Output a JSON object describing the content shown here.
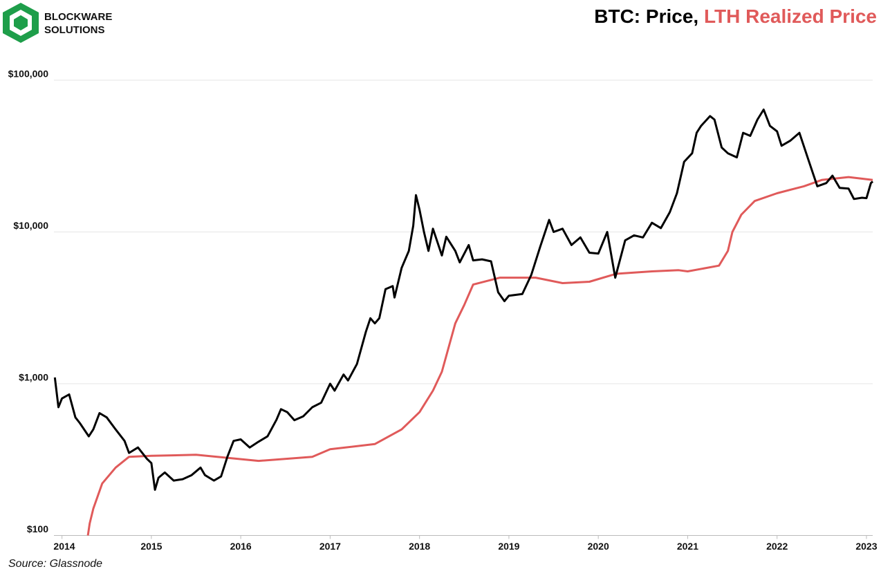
{
  "logo": [
    "BLOCKWARE",
    "SOLUTIONS"
  ],
  "chart_data": {
    "type": "line",
    "legend_separator": ",",
    "source": "Source: Glassnode",
    "log_y": true,
    "grid": true,
    "xlim": [
      2013.91,
      2023.07
    ],
    "xticks": [
      2014,
      2015,
      2016,
      2017,
      2018,
      2019,
      2020,
      2021,
      2022,
      2023
    ],
    "ylim": [
      100,
      100000
    ],
    "yticks": [
      {
        "value": 100,
        "label": "$100"
      },
      {
        "value": 1000,
        "label": "$1,000"
      },
      {
        "value": 10000,
        "label": "$10,000"
      },
      {
        "value": 100000,
        "label": "$100,000"
      }
    ],
    "series": [
      {
        "name": "BTC: Price",
        "color": "#000000",
        "x": [
          2013.92,
          2013.96,
          2014.0,
          2014.08,
          2014.15,
          2014.2,
          2014.3,
          2014.35,
          2014.42,
          2014.5,
          2014.6,
          2014.7,
          2014.75,
          2014.85,
          2014.95,
          2015.0,
          2015.04,
          2015.08,
          2015.15,
          2015.25,
          2015.35,
          2015.45,
          2015.55,
          2015.6,
          2015.7,
          2015.78,
          2015.85,
          2015.92,
          2016.0,
          2016.1,
          2016.2,
          2016.3,
          2016.4,
          2016.45,
          2016.52,
          2016.6,
          2016.7,
          2016.8,
          2016.9,
          2017.0,
          2017.05,
          2017.15,
          2017.2,
          2017.3,
          2017.4,
          2017.45,
          2017.5,
          2017.55,
          2017.62,
          2017.7,
          2017.72,
          2017.8,
          2017.88,
          2017.93,
          2017.96,
          2018.0,
          2018.05,
          2018.1,
          2018.15,
          2018.25,
          2018.3,
          2018.4,
          2018.45,
          2018.55,
          2018.6,
          2018.7,
          2018.8,
          2018.88,
          2018.95,
          2019.0,
          2019.15,
          2019.25,
          2019.35,
          2019.45,
          2019.5,
          2019.6,
          2019.7,
          2019.8,
          2019.9,
          2020.0,
          2020.1,
          2020.19,
          2020.3,
          2020.4,
          2020.5,
          2020.6,
          2020.7,
          2020.8,
          2020.88,
          2020.96,
          2021.05,
          2021.1,
          2021.15,
          2021.25,
          2021.3,
          2021.38,
          2021.45,
          2021.55,
          2021.62,
          2021.7,
          2021.78,
          2021.85,
          2021.92,
          2022.0,
          2022.05,
          2022.15,
          2022.25,
          2022.35,
          2022.45,
          2022.55,
          2022.62,
          2022.7,
          2022.8,
          2022.86,
          2022.95,
          2023.0,
          2023.05,
          2023.07
        ],
        "values": [
          1100,
          700,
          800,
          850,
          600,
          550,
          450,
          500,
          640,
          600,
          500,
          420,
          350,
          380,
          320,
          300,
          200,
          240,
          260,
          230,
          235,
          250,
          280,
          250,
          230,
          245,
          330,
          420,
          430,
          380,
          415,
          450,
          580,
          680,
          650,
          575,
          610,
          700,
          750,
          1000,
          900,
          1150,
          1050,
          1350,
          2200,
          2700,
          2500,
          2700,
          4200,
          4400,
          3700,
          5800,
          7500,
          11000,
          17500,
          14000,
          10000,
          7500,
          10500,
          7000,
          9300,
          7500,
          6300,
          8200,
          6500,
          6600,
          6400,
          4000,
          3500,
          3800,
          3900,
          5200,
          8000,
          12000,
          10000,
          10500,
          8200,
          9200,
          7300,
          7200,
          10000,
          5000,
          8800,
          9500,
          9200,
          11500,
          10600,
          13500,
          18000,
          29000,
          33000,
          45000,
          50000,
          58000,
          55000,
          36000,
          33000,
          31000,
          45000,
          43000,
          55000,
          64000,
          50000,
          46000,
          37000,
          40000,
          45000,
          30000,
          20000,
          21000,
          23500,
          19500,
          19300,
          16500,
          16800,
          16700,
          21000,
          21500
        ]
      },
      {
        "name": "LTH Realized Price",
        "color": "#e05a5a",
        "x": [
          2014.29,
          2014.31,
          2014.35,
          2014.45,
          2014.6,
          2014.75,
          2015.0,
          2015.5,
          2016.2,
          2016.8,
          2017.0,
          2017.5,
          2017.8,
          2018.0,
          2018.15,
          2018.25,
          2018.4,
          2018.5,
          2018.6,
          2018.9,
          2019.3,
          2019.6,
          2019.9,
          2020.2,
          2020.6,
          2020.9,
          2021.0,
          2021.35,
          2021.45,
          2021.5,
          2021.6,
          2021.75,
          2022.0,
          2022.3,
          2022.5,
          2022.8,
          2023.07
        ],
        "values": [
          100,
          120,
          150,
          220,
          280,
          330,
          335,
          340,
          310,
          330,
          370,
          400,
          500,
          650,
          900,
          1200,
          2500,
          3300,
          4500,
          5000,
          5000,
          4600,
          4700,
          5300,
          5500,
          5600,
          5500,
          6000,
          7500,
          10000,
          13000,
          16000,
          18000,
          20000,
          22000,
          23000,
          22000
        ]
      }
    ]
  }
}
